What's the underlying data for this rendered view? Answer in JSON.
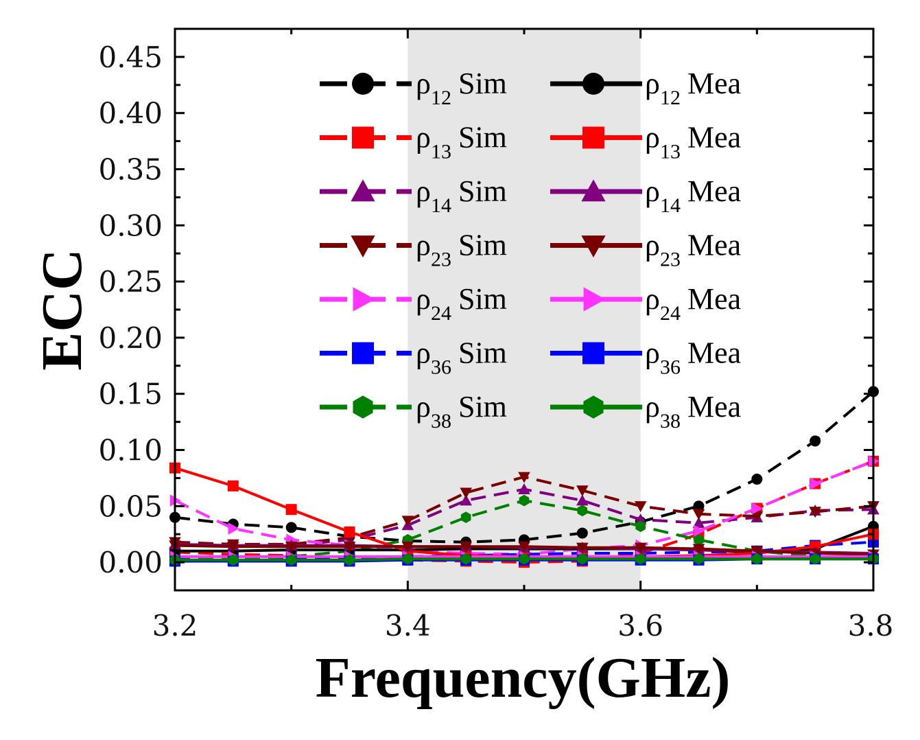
{
  "chart_data": {
    "type": "line",
    "title": "",
    "xlabel": "Frequency(GHz)",
    "ylabel": "ECC",
    "xlim": [
      3.2,
      3.8
    ],
    "ylim": [
      -0.025,
      0.475
    ],
    "xticks": [
      3.2,
      3.4,
      3.6,
      3.8
    ],
    "xtick_labels": [
      "3.2",
      "3.4",
      "3.6",
      "3.8"
    ],
    "yticks": [
      0.0,
      0.05,
      0.1,
      0.15,
      0.2,
      0.25,
      0.3,
      0.35,
      0.4,
      0.45
    ],
    "ytick_labels": [
      "0.00",
      "0.05",
      "0.10",
      "0.15",
      "0.20",
      "0.25",
      "0.30",
      "0.35",
      "0.40",
      "0.45"
    ],
    "highlight_band": [
      3.4,
      3.6
    ],
    "highlight_color": "#e6e6e6",
    "grid": false,
    "legend_position": "top-center",
    "x": [
      3.2,
      3.25,
      3.3,
      3.35,
      3.4,
      3.45,
      3.5,
      3.55,
      3.6,
      3.65,
      3.7,
      3.75,
      3.8
    ],
    "series": [
      {
        "name": "ρ12 Sim",
        "label_symbol": "ρ",
        "label_sub": "12",
        "label_suffix": "Sim",
        "color": "#000000",
        "dash": "dashed",
        "marker": "circle",
        "values": [
          0.04,
          0.034,
          0.031,
          0.023,
          0.019,
          0.018,
          0.02,
          0.026,
          0.036,
          0.05,
          0.074,
          0.108,
          0.152
        ]
      },
      {
        "name": "ρ13 Sim",
        "label_symbol": "ρ",
        "label_sub": "13",
        "label_suffix": "Sim",
        "color": "#ff0000",
        "dash": "dashed",
        "marker": "square",
        "values": [
          0.009,
          0.007,
          0.006,
          0.004,
          0.002,
          0.001,
          0.0,
          0.001,
          0.008,
          0.025,
          0.048,
          0.07,
          0.09
        ]
      },
      {
        "name": "ρ14 Sim",
        "label_symbol": "ρ",
        "label_sub": "14",
        "label_suffix": "Sim",
        "color": "#800080",
        "dash": "dashed",
        "marker": "triangle-up",
        "values": [
          0.016,
          0.014,
          0.015,
          0.02,
          0.033,
          0.055,
          0.065,
          0.055,
          0.038,
          0.035,
          0.04,
          0.046,
          0.047
        ]
      },
      {
        "name": "ρ23 Sim",
        "label_symbol": "ρ",
        "label_sub": "23",
        "label_suffix": "Sim",
        "color": "#7a0000",
        "dash": "dashed",
        "marker": "triangle-down",
        "values": [
          0.018,
          0.016,
          0.016,
          0.022,
          0.037,
          0.062,
          0.076,
          0.064,
          0.05,
          0.043,
          0.041,
          0.045,
          0.05
        ]
      },
      {
        "name": "ρ24 Sim",
        "label_symbol": "ρ",
        "label_sub": "24",
        "label_suffix": "Sim",
        "color": "#ff33ff",
        "dash": "dashed",
        "marker": "triangle-right",
        "values": [
          0.055,
          0.03,
          0.02,
          0.015,
          0.01,
          0.008,
          0.007,
          0.012,
          0.015,
          0.028,
          0.048,
          0.07,
          0.09
        ]
      },
      {
        "name": "ρ36 Sim",
        "label_symbol": "ρ",
        "label_sub": "36",
        "label_suffix": "Sim",
        "color": "#0000ff",
        "dash": "dashed",
        "marker": "square",
        "values": [
          0.003,
          0.003,
          0.003,
          0.004,
          0.005,
          0.006,
          0.007,
          0.008,
          0.008,
          0.009,
          0.01,
          0.015,
          0.018
        ]
      },
      {
        "name": "ρ38 Sim",
        "label_symbol": "ρ",
        "label_sub": "38",
        "label_suffix": "Sim",
        "color": "#008000",
        "dash": "dashed",
        "marker": "hexagon",
        "values": [
          0.002,
          0.003,
          0.005,
          0.01,
          0.02,
          0.04,
          0.055,
          0.046,
          0.032,
          0.02,
          0.01,
          0.005,
          0.003
        ]
      },
      {
        "name": "ρ12 Mea",
        "label_symbol": "ρ",
        "label_sub": "12",
        "label_suffix": "Mea",
        "color": "#000000",
        "dash": "solid",
        "marker": "circle",
        "values": [
          0.01,
          0.01,
          0.011,
          0.011,
          0.011,
          0.012,
          0.012,
          0.012,
          0.012,
          0.011,
          0.009,
          0.012,
          0.032
        ]
      },
      {
        "name": "ρ13 Mea",
        "label_symbol": "ρ",
        "label_sub": "13",
        "label_suffix": "Mea",
        "color": "#ff0000",
        "dash": "solid",
        "marker": "square",
        "values": [
          0.084,
          0.068,
          0.047,
          0.027,
          0.01,
          0.006,
          0.005,
          0.005,
          0.005,
          0.006,
          0.008,
          0.014,
          0.025
        ]
      },
      {
        "name": "ρ14 Mea",
        "label_symbol": "ρ",
        "label_sub": "14",
        "label_suffix": "Mea",
        "color": "#800080",
        "dash": "solid",
        "marker": "triangle-up",
        "values": [
          0.016,
          0.015,
          0.015,
          0.015,
          0.014,
          0.014,
          0.013,
          0.013,
          0.012,
          0.011,
          0.01,
          0.009,
          0.008
        ]
      },
      {
        "name": "ρ23 Mea",
        "label_symbol": "ρ",
        "label_sub": "23",
        "label_suffix": "Mea",
        "color": "#7a0000",
        "dash": "solid",
        "marker": "triangle-down",
        "values": [
          0.015,
          0.014,
          0.014,
          0.014,
          0.014,
          0.014,
          0.014,
          0.013,
          0.013,
          0.012,
          0.01,
          0.008,
          0.007
        ]
      },
      {
        "name": "ρ24 Mea",
        "label_symbol": "ρ",
        "label_sub": "24",
        "label_suffix": "Mea",
        "color": "#ff33ff",
        "dash": "solid",
        "marker": "triangle-right",
        "values": [
          0.005,
          0.005,
          0.005,
          0.005,
          0.005,
          0.005,
          0.005,
          0.005,
          0.005,
          0.005,
          0.005,
          0.005,
          0.005
        ]
      },
      {
        "name": "ρ36 Mea",
        "label_symbol": "ρ",
        "label_sub": "36",
        "label_suffix": "Mea",
        "color": "#0000ff",
        "dash": "solid",
        "marker": "square",
        "values": [
          0.001,
          0.001,
          0.001,
          0.001,
          0.002,
          0.002,
          0.002,
          0.002,
          0.002,
          0.002,
          0.003,
          0.003,
          0.003
        ]
      },
      {
        "name": "ρ38 Mea",
        "label_symbol": "ρ",
        "label_sub": "38",
        "label_suffix": "Mea",
        "color": "#008000",
        "dash": "solid",
        "marker": "hexagon",
        "values": [
          0.002,
          0.002,
          0.002,
          0.002,
          0.003,
          0.003,
          0.003,
          0.003,
          0.003,
          0.003,
          0.003,
          0.003,
          0.003
        ]
      }
    ]
  }
}
